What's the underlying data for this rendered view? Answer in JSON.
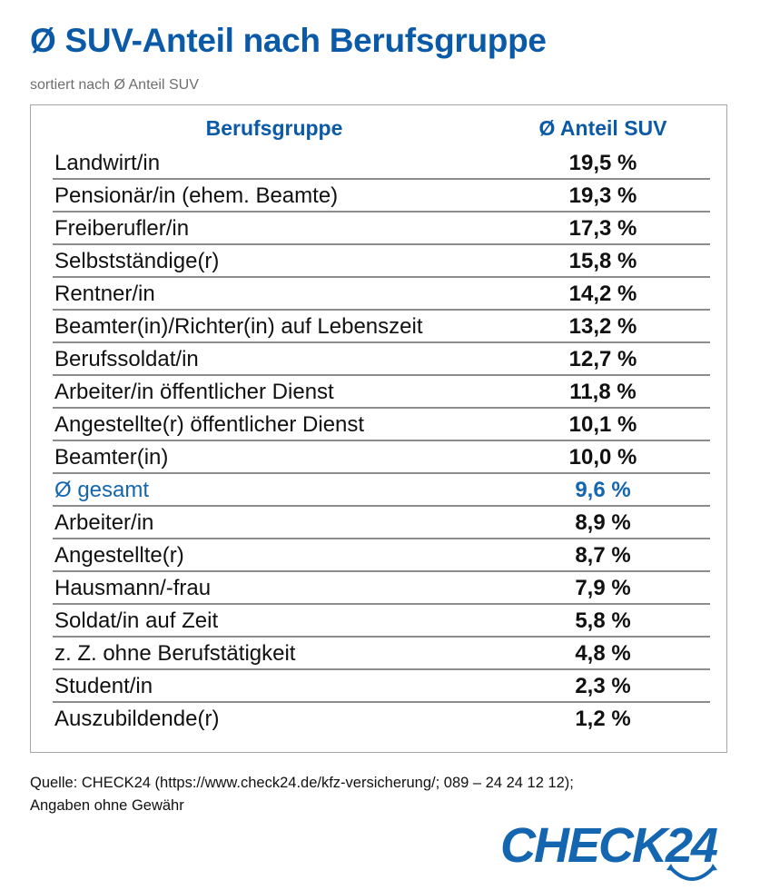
{
  "header": {
    "title": "Ø SUV-Anteil nach Berufsgruppe",
    "subtitle": "sortiert nach Ø Anteil SUV"
  },
  "table": {
    "columns": [
      "Berufsgruppe",
      "Ø Anteil SUV"
    ],
    "rows": [
      {
        "name": "Landwirt/in",
        "value": "19,5 %"
      },
      {
        "name": "Pensionär/in (ehem. Beamte)",
        "value": "19,3 %"
      },
      {
        "name": "Freiberufler/in",
        "value": "17,3 %"
      },
      {
        "name": "Selbstständige(r)",
        "value": "15,8 %"
      },
      {
        "name": "Rentner/in",
        "value": "14,2 %"
      },
      {
        "name": "Beamter(in)/Richter(in) auf Lebenszeit",
        "value": "13,2 %"
      },
      {
        "name": "Berufssoldat/in",
        "value": "12,7 %"
      },
      {
        "name": "Arbeiter/in öffentlicher Dienst",
        "value": "11,8 %"
      },
      {
        "name": "Angestellte(r) öffentlicher Dienst",
        "value": "10,1 %"
      },
      {
        "name": "Beamter(in)",
        "value": "10,0 %"
      },
      {
        "name": "Ø gesamt",
        "value": "9,6 %",
        "highlight": true
      },
      {
        "name": "Arbeiter/in",
        "value": "8,9 %"
      },
      {
        "name": "Angestellte(r)",
        "value": "8,7 %"
      },
      {
        "name": "Hausmann/-frau",
        "value": "7,9 %"
      },
      {
        "name": "Soldat/in auf Zeit",
        "value": "5,8 %"
      },
      {
        "name": "z. Z. ohne Berufstätigkeit",
        "value": "4,8 %"
      },
      {
        "name": "Student/in",
        "value": "2,3 %"
      },
      {
        "name": "Auszubildende(r)",
        "value": "1,2 %"
      }
    ]
  },
  "footer": {
    "source_line1": "Quelle: CHECK24 (https://www.check24.de/kfz-versicherung/; 089 – 24 24 12 12);",
    "source_line2": "Angaben ohne Gewähr",
    "logo_text": "CHECK24"
  },
  "colors": {
    "brand_blue": "#0b5aa8",
    "highlight_blue": "#1466b0",
    "divider": "#8c8c8c"
  }
}
